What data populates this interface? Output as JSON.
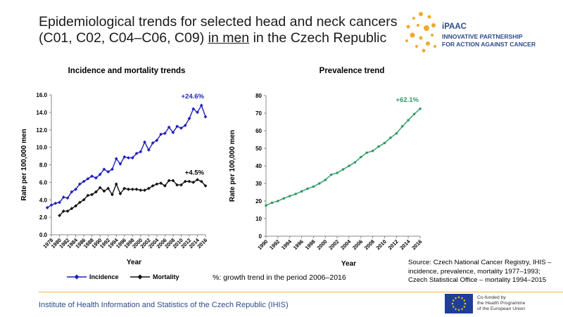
{
  "header": {
    "title_line1": "Epidemiological trends for selected head and neck cancers",
    "title_line2_before": "(C01, C02, C04–C06, C09) ",
    "title_line2_underlined": "in men",
    "title_line2_after": " in the Czech Republic",
    "logo_brand": "iPAAC",
    "logo_line1": "INNOVATIVE PARTNERSHIP",
    "logo_line2": "FOR ACTION AGAINST CANCER"
  },
  "colors": {
    "incidence": "#1f1fbf",
    "mortality": "#111111",
    "prevalence": "#2e9a62",
    "incidence_label": "#1f1fbf",
    "prevalence_label": "#2e9a62",
    "logo_dots": "#f0a830"
  },
  "chart_data": [
    {
      "type": "line",
      "title": "Incidence and mortality trends",
      "xlabel": "Year",
      "ylabel": "Rate per 100,000 men",
      "ylim": [
        0,
        16
      ],
      "yticks": [
        "0.0",
        "2.0",
        "4.0",
        "6.0",
        "8.0",
        "10.0",
        "12.0",
        "14.0",
        "16.0"
      ],
      "xticks": [
        "1978",
        "1980",
        "1982",
        "1984",
        "1986",
        "1988",
        "1990",
        "1992",
        "1994",
        "1996",
        "1998",
        "2000",
        "2002",
        "2004",
        "2006",
        "2008",
        "2010",
        "2012",
        "2014",
        "2016"
      ],
      "xrange": [
        1978,
        2016
      ],
      "series": [
        {
          "name": "Incidence",
          "x": [
            1977,
            1978,
            1979,
            1980,
            1981,
            1982,
            1983,
            1984,
            1985,
            1986,
            1987,
            1988,
            1989,
            1990,
            1991,
            1992,
            1993,
            1994,
            1995,
            1996,
            1997,
            1998,
            1999,
            2000,
            2001,
            2002,
            2003,
            2004,
            2005,
            2006,
            2007,
            2008,
            2009,
            2010,
            2011,
            2012,
            2013,
            2014,
            2015,
            2016
          ],
          "values": [
            3.1,
            3.4,
            3.6,
            3.7,
            4.3,
            4.2,
            4.9,
            5.2,
            5.8,
            6.1,
            6.4,
            6.7,
            6.5,
            6.9,
            7.5,
            7.2,
            7.5,
            8.7,
            8.1,
            8.9,
            8.8,
            8.8,
            9.3,
            9.5,
            10.6,
            9.7,
            10.5,
            10.8,
            11.5,
            11.6,
            12.3,
            11.7,
            12.4,
            12.2,
            12.5,
            13.3,
            14.4,
            14.0,
            14.8,
            13.5
          ],
          "annotation": "+24.6%"
        },
        {
          "name": "Mortality",
          "x": [
            1980,
            1981,
            1982,
            1983,
            1984,
            1985,
            1986,
            1987,
            1988,
            1989,
            1990,
            1991,
            1992,
            1993,
            1994,
            1995,
            1996,
            1997,
            1998,
            1999,
            2000,
            2001,
            2002,
            2003,
            2004,
            2005,
            2006,
            2007,
            2008,
            2009,
            2010,
            2011,
            2012,
            2013,
            2014,
            2015,
            2016
          ],
          "values": [
            2.2,
            2.7,
            2.7,
            3.0,
            3.3,
            3.7,
            4.0,
            4.5,
            4.6,
            4.9,
            5.4,
            5.0,
            5.3,
            4.6,
            5.8,
            4.7,
            5.3,
            5.2,
            5.2,
            5.2,
            5.1,
            5.1,
            5.3,
            5.6,
            5.8,
            5.9,
            5.6,
            6.2,
            6.2,
            5.7,
            5.7,
            6.1,
            6.1,
            6.0,
            6.3,
            6.1,
            5.6
          ],
          "annotation": "+4.5%"
        }
      ]
    },
    {
      "type": "line",
      "title": "Prevalence trend",
      "xlabel": "Year",
      "ylabel": "Rate per 100,000 men",
      "ylim": [
        0,
        80
      ],
      "yticks": [
        "0",
        "10",
        "20",
        "30",
        "40",
        "50",
        "60",
        "70",
        "80"
      ],
      "xticks": [
        "1990",
        "1992",
        "1994",
        "1996",
        "1998",
        "2000",
        "2002",
        "2004",
        "2006",
        "2008",
        "2010",
        "2012",
        "2014",
        "2016"
      ],
      "xrange": [
        1990,
        2016
      ],
      "series": [
        {
          "name": "Prevalence",
          "x": [
            1990,
            1991,
            1992,
            1993,
            1994,
            1995,
            1996,
            1997,
            1998,
            1999,
            2000,
            2001,
            2002,
            2003,
            2004,
            2005,
            2006,
            2007,
            2008,
            2009,
            2010,
            2011,
            2012,
            2013,
            2014,
            2015,
            2016
          ],
          "values": [
            17.5,
            19.0,
            20.0,
            21.5,
            22.8,
            24.0,
            25.5,
            27.0,
            28.2,
            30.0,
            32.0,
            35.0,
            36.0,
            38.0,
            40.0,
            42.0,
            45.0,
            47.5,
            48.5,
            51.0,
            53.0,
            56.0,
            58.5,
            62.5,
            66.0,
            69.5,
            72.5
          ],
          "annotation": "+62.1%"
        }
      ]
    }
  ],
  "legend": {
    "incidence_label": "Incidence",
    "mortality_label": "Mortality"
  },
  "note": "%: growth trend in the period 2006–2016",
  "source": {
    "line1": "Source: Czech National Cancer Registry, IHIS –",
    "line2": "incidence, prevalence, mortality 1977–1993;",
    "line3": "Czech Statistical Office – mortality 1994–2015"
  },
  "footer": {
    "text": "Institute of Health Information and Statistics of the Czech Republic (IHIS)",
    "eu_text": "Co-funded by\nthe Health Programme\nof the European Union"
  }
}
